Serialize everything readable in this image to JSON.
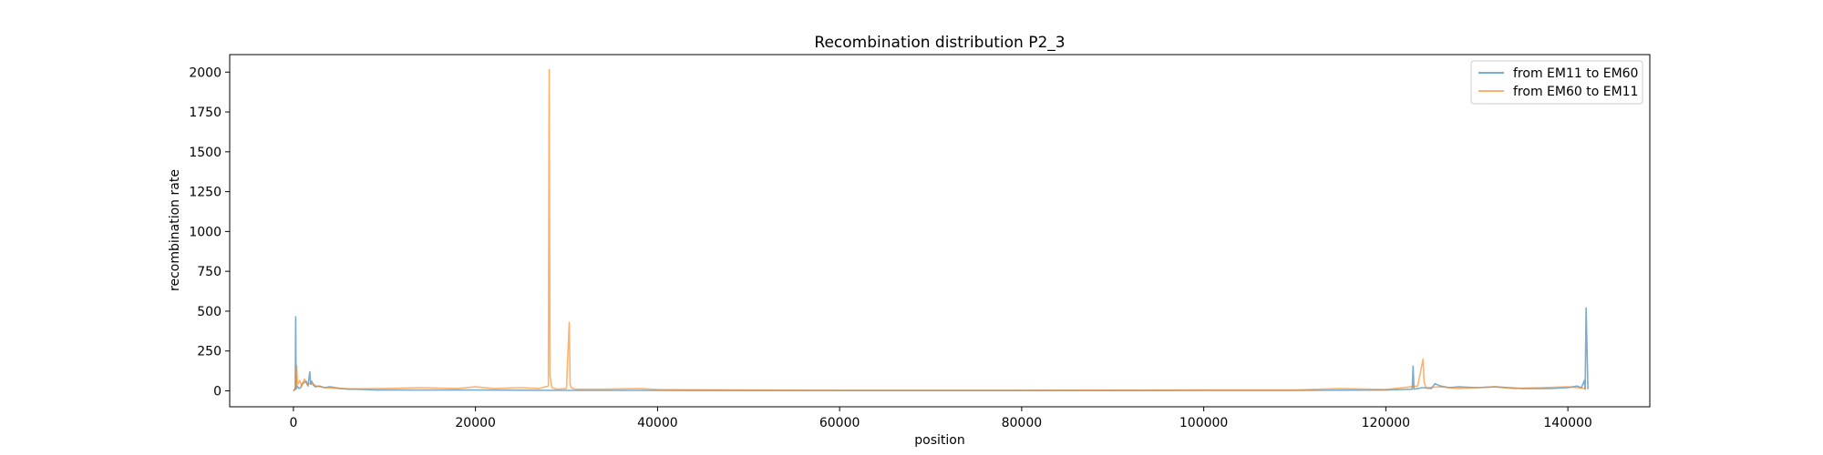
{
  "chart_data": {
    "type": "line",
    "title": "Recombination distribution P2_3",
    "xlabel": "position",
    "ylabel": "recombination rate",
    "xlim": [
      -7000,
      149000
    ],
    "ylim": [
      -100,
      2110
    ],
    "xticks": [
      0,
      20000,
      40000,
      60000,
      80000,
      100000,
      120000,
      140000
    ],
    "yticks": [
      0,
      250,
      500,
      750,
      1000,
      1250,
      1500,
      1750,
      2000
    ],
    "grid": false,
    "legend_position": "top-right",
    "series": [
      {
        "name": "from EM11 to EM60",
        "color": "#1f77b4",
        "x": [
          0,
          200,
          250,
          300,
          400,
          600,
          800,
          1000,
          1400,
          1600,
          1800,
          1900,
          2000,
          2200,
          2400,
          2800,
          3400,
          4000,
          4600,
          5200,
          6000,
          7000,
          8000,
          9000,
          12000,
          16000,
          20000,
          30000,
          40000,
          60000,
          80000,
          100000,
          110000,
          120000,
          122900,
          123000,
          123100,
          124000,
          125000,
          125400,
          126000,
          127000,
          128000,
          130000,
          132000,
          135000,
          138000,
          140000,
          141000,
          141500,
          141800,
          141900,
          142000,
          142200
        ],
        "y": [
          0,
          10,
          465,
          10,
          30,
          15,
          20,
          45,
          60,
          30,
          120,
          40,
          60,
          35,
          25,
          30,
          20,
          25,
          20,
          15,
          10,
          10,
          8,
          5,
          5,
          5,
          5,
          3,
          3,
          2,
          2,
          3,
          3,
          5,
          10,
          155,
          10,
          20,
          15,
          45,
          30,
          20,
          25,
          20,
          25,
          15,
          15,
          20,
          30,
          20,
          65,
          10,
          520,
          10
        ]
      },
      {
        "name": "from EM60 to EM11",
        "color": "#ff7f0e",
        "x": [
          0,
          250,
          350,
          450,
          700,
          900,
          1200,
          1500,
          2000,
          2500,
          3500,
          5000,
          7000,
          10000,
          14000,
          18000,
          20000,
          22000,
          25000,
          27000,
          28000,
          28100,
          28200,
          28400,
          29000,
          30000,
          30300,
          30400,
          30500,
          31000,
          34000,
          38000,
          40000,
          50000,
          60000,
          80000,
          100000,
          110000,
          115000,
          120000,
          123500,
          124100,
          124200,
          124400,
          126000,
          128000,
          130000,
          132000,
          134000,
          137000,
          140000,
          142000
        ],
        "y": [
          0,
          20,
          160,
          40,
          65,
          30,
          75,
          40,
          50,
          30,
          20,
          15,
          12,
          15,
          20,
          15,
          25,
          15,
          20,
          15,
          30,
          2015,
          90,
          20,
          10,
          15,
          430,
          40,
          20,
          10,
          10,
          15,
          8,
          5,
          3,
          3,
          5,
          5,
          15,
          8,
          30,
          200,
          60,
          20,
          25,
          15,
          20,
          25,
          15,
          20,
          25,
          15
        ]
      }
    ]
  }
}
